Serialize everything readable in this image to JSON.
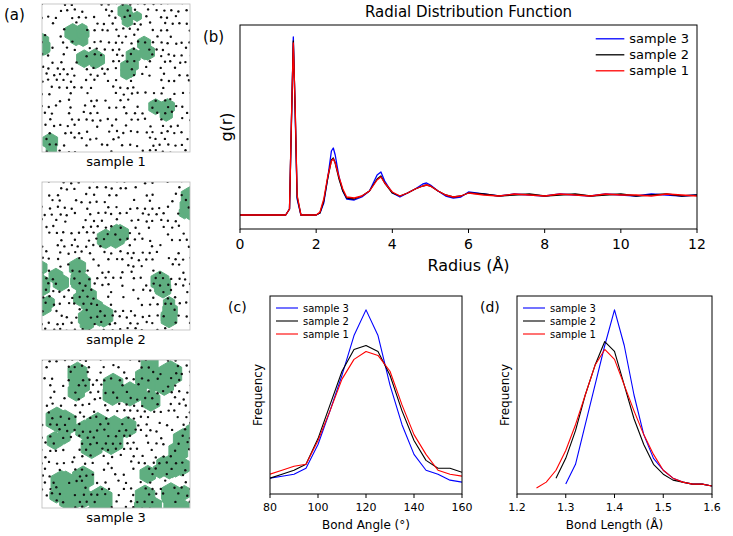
{
  "chart_data": [
    {
      "type": "image",
      "panel": "(a)",
      "captions": [
        "sample 1",
        "sample 2",
        "sample 3"
      ]
    },
    {
      "type": "line",
      "panel": "(b)",
      "title": "Radial Distribution Function",
      "x_label": "Radius (Å)",
      "y_label": "g(r)",
      "x": [
        0,
        1.0,
        1.2,
        1.3,
        1.35,
        1.4,
        1.45,
        1.5,
        1.6,
        1.8,
        2.0,
        2.1,
        2.2,
        2.3,
        2.4,
        2.45,
        2.5,
        2.6,
        2.7,
        2.8,
        3.0,
        3.2,
        3.4,
        3.6,
        3.7,
        3.8,
        4.0,
        4.2,
        4.4,
        4.6,
        4.8,
        4.9,
        5.0,
        5.2,
        5.4,
        5.6,
        5.8,
        6.0,
        6.4,
        6.8,
        7.2,
        7.6,
        8.0,
        8.4,
        8.8,
        9.2,
        9.6,
        10.0,
        10.4,
        10.8,
        11.2,
        11.6,
        12.0
      ],
      "series": [
        {
          "name": "sample 3",
          "color": "#0000ff",
          "values": [
            0,
            0,
            0,
            0.3,
            4.5,
            8.9,
            5.0,
            0.8,
            0,
            0,
            0,
            0.1,
            0.6,
            1.8,
            3.2,
            3.35,
            3.0,
            1.9,
            1.2,
            0.8,
            0.75,
            0.9,
            1.2,
            2.0,
            2.15,
            1.7,
            1.1,
            0.9,
            1.1,
            1.3,
            1.55,
            1.6,
            1.5,
            1.2,
            0.95,
            0.85,
            0.9,
            1.15,
            1.05,
            0.95,
            1.05,
            1.0,
            0.95,
            1.05,
            1.0,
            0.95,
            1.05,
            1.0,
            0.95,
            1.05,
            1.0,
            0.95,
            1.0
          ]
        },
        {
          "name": "sample 2",
          "color": "#000000",
          "values": [
            0,
            0,
            0,
            0.3,
            4.6,
            8.7,
            5.2,
            0.9,
            0,
            0,
            0,
            0.1,
            0.7,
            1.8,
            2.75,
            2.85,
            2.6,
            1.8,
            1.2,
            0.85,
            0.8,
            0.95,
            1.2,
            1.8,
            1.95,
            1.6,
            1.1,
            0.95,
            1.1,
            1.3,
            1.45,
            1.5,
            1.45,
            1.2,
            1.0,
            0.9,
            0.95,
            1.1,
            1.05,
            0.95,
            1.0,
            1.05,
            0.95,
            1.0,
            1.05,
            0.95,
            1.0,
            1.05,
            0.95,
            1.0,
            1.05,
            0.95,
            1.0
          ]
        },
        {
          "name": "sample 1",
          "color": "#ff0000",
          "values": [
            0,
            0,
            0,
            0.3,
            4.7,
            8.6,
            5.3,
            1.0,
            0,
            0,
            0,
            0.15,
            0.8,
            1.9,
            2.7,
            2.8,
            2.6,
            1.9,
            1.3,
            0.9,
            0.85,
            0.95,
            1.2,
            1.75,
            1.9,
            1.6,
            1.15,
            0.95,
            1.1,
            1.3,
            1.45,
            1.5,
            1.45,
            1.2,
            1.0,
            0.9,
            0.95,
            1.1,
            1.0,
            0.95,
            1.05,
            1.0,
            0.95,
            1.05,
            1.0,
            0.95,
            1.05,
            1.0,
            1.0,
            0.95,
            1.05,
            1.0,
            0.95
          ]
        }
      ],
      "xlim": [
        0,
        12
      ],
      "xticks": [
        0,
        2,
        4,
        6,
        8,
        10,
        12
      ],
      "ylim": [
        -0.7,
        9.5
      ],
      "tick_labels": "x",
      "legend": "upper right"
    },
    {
      "type": "line",
      "panel": "(c)",
      "x_label": "Bond Angle (°)",
      "y_label": "Frequency",
      "x": [
        80,
        85,
        90,
        95,
        100,
        105,
        110,
        115,
        120,
        125,
        130,
        135,
        140,
        145,
        150,
        155,
        160
      ],
      "series": [
        {
          "name": "sample 3",
          "color": "#0000ff",
          "values": [
            0.08,
            0.09,
            0.1,
            0.13,
            0.25,
            0.42,
            0.6,
            0.8,
            0.93,
            0.8,
            0.55,
            0.35,
            0.2,
            0.12,
            0.1,
            0.07,
            0.06
          ]
        },
        {
          "name": "sample 2",
          "color": "#000000",
          "values": [
            0.08,
            0.1,
            0.12,
            0.15,
            0.28,
            0.45,
            0.62,
            0.73,
            0.75,
            0.72,
            0.6,
            0.42,
            0.27,
            0.17,
            0.13,
            0.13,
            0.11
          ]
        },
        {
          "name": "sample 1",
          "color": "#ff0000",
          "values": [
            0.1,
            0.12,
            0.14,
            0.15,
            0.27,
            0.42,
            0.58,
            0.68,
            0.72,
            0.7,
            0.62,
            0.45,
            0.3,
            0.2,
            0.12,
            0.1,
            0.09
          ]
        }
      ],
      "xlim": [
        80,
        160
      ],
      "xticks": [
        80,
        100,
        120,
        140,
        160
      ],
      "ylim": [
        0,
        1
      ],
      "tick_labels": "x",
      "legend": "upper left"
    },
    {
      "type": "line",
      "panel": "(d)",
      "x_label": "Bond Length (Å)",
      "y_label": "Frequency",
      "x": [
        1.24,
        1.26,
        1.28,
        1.3,
        1.32,
        1.34,
        1.36,
        1.38,
        1.4,
        1.42,
        1.44,
        1.46,
        1.48,
        1.5,
        1.52,
        1.54,
        1.56,
        1.58,
        1.6
      ],
      "series": [
        {
          "name": "sample 3",
          "color": "#0000ff",
          "values": [
            null,
            null,
            null,
            0.05,
            0.15,
            0.35,
            0.55,
            0.75,
            0.93,
            0.75,
            0.5,
            0.3,
            0.18,
            0.12,
            0.08,
            0.06,
            0.05,
            0.05,
            0.04
          ]
        },
        {
          "name": "sample 2",
          "color": "#000000",
          "values": [
            null,
            null,
            0.08,
            0.18,
            0.32,
            0.5,
            0.65,
            0.77,
            0.72,
            0.55,
            0.38,
            0.25,
            0.15,
            0.1,
            0.07,
            0.06,
            0.05,
            0.05,
            0.04
          ]
        },
        {
          "name": "sample 1",
          "color": "#ff0000",
          "values": [
            0.03,
            0.06,
            0.12,
            0.22,
            0.35,
            0.5,
            0.65,
            0.73,
            0.68,
            0.55,
            0.42,
            0.3,
            0.2,
            0.12,
            0.08,
            0.06,
            0.05,
            0.05,
            0.04
          ]
        }
      ],
      "xlim": [
        1.2,
        1.6
      ],
      "xticks": [
        1.2,
        1.3,
        1.4,
        1.5,
        1.6
      ],
      "ylim": [
        0,
        1
      ],
      "tick_labels": "x",
      "legend": "upper left"
    }
  ]
}
